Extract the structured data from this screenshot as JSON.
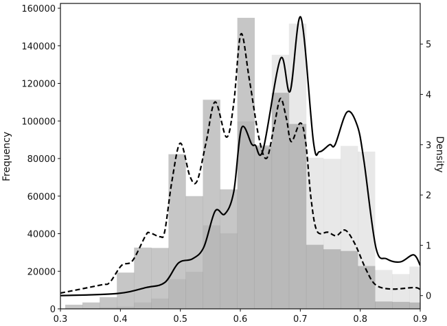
{
  "chart_data": {
    "type": "bar",
    "subtype": "overlaid histogram with density curves (twin y-axes)",
    "title": "",
    "xlabel": "",
    "ylabel": "Frequency",
    "ylabel_right": "Density",
    "xlim": [
      0.3,
      0.9
    ],
    "ylim": [
      0,
      160000
    ],
    "ylim_right": [
      -0.1,
      5.8
    ],
    "x_ticks": [
      "0.3",
      "0.4",
      "0.5",
      "0.6",
      "0.7",
      "0.8",
      "0.9"
    ],
    "y_ticks": [
      "0",
      "20000",
      "40000",
      "60000",
      "80000",
      "100000",
      "120000",
      "140000",
      "160000"
    ],
    "y_ticks_right": [
      "0",
      "1",
      "2",
      "3",
      "4",
      "5"
    ],
    "grid": false,
    "legend": "none",
    "bin_start": 0.308,
    "bin_width": 0.0287,
    "histograms": [
      {
        "color": "#808080",
        "opacity": 0.45,
        "values": [
          2200,
          3400,
          6200,
          19300,
          32600,
          32400,
          82300,
          60000,
          111300,
          63600,
          154900,
          87000,
          115000,
          98400,
          34100,
          31700,
          30800,
          22800,
          3900,
          3700,
          3400
        ]
      },
      {
        "color": "#808080",
        "opacity": 0.18,
        "values": [
          0,
          400,
          800,
          1200,
          3400,
          5500,
          15800,
          19700,
          44400,
          40200,
          99800,
          86000,
          135200,
          151800,
          80400,
          79800,
          86700,
          83700,
          20700,
          18500,
          22500
        ]
      }
    ],
    "density_curves": [
      {
        "style": "dashed",
        "color": "#000000",
        "x": [
          0.3,
          0.367,
          0.382,
          0.402,
          0.42,
          0.442,
          0.449,
          0.466,
          0.474,
          0.486,
          0.5,
          0.516,
          0.528,
          0.543,
          0.558,
          0.577,
          0.589,
          0.601,
          0.615,
          0.631,
          0.644,
          0.657,
          0.667,
          0.677,
          0.685,
          0.7,
          0.709,
          0.718,
          0.728,
          0.746,
          0.76,
          0.775,
          0.791,
          0.81,
          0.826,
          0.852,
          0.89,
          0.9
        ],
        "y": [
          0.05,
          0.21,
          0.26,
          0.6,
          0.69,
          1.19,
          1.25,
          1.17,
          1.28,
          2.28,
          3.03,
          2.37,
          2.28,
          3.05,
          3.85,
          3.15,
          3.82,
          5.2,
          4.3,
          3.14,
          2.73,
          3.41,
          3.92,
          3.51,
          3.06,
          3.43,
          3.05,
          1.92,
          1.28,
          1.26,
          1.19,
          1.3,
          1.03,
          0.51,
          0.21,
          0.13,
          0.16,
          0.12
        ]
      },
      {
        "style": "solid",
        "color": "#000000",
        "x": [
          0.3,
          0.394,
          0.443,
          0.474,
          0.497,
          0.52,
          0.539,
          0.558,
          0.574,
          0.589,
          0.602,
          0.619,
          0.625,
          0.638,
          0.667,
          0.683,
          0.701,
          0.722,
          0.732,
          0.749,
          0.758,
          0.778,
          0.795,
          0.806,
          0.826,
          0.844,
          0.867,
          0.889,
          0.9
        ],
        "y": [
          0.0,
          0.04,
          0.16,
          0.26,
          0.65,
          0.73,
          0.96,
          1.68,
          1.62,
          2.06,
          3.33,
          3.01,
          2.99,
          2.9,
          4.71,
          4.06,
          5.53,
          3.05,
          2.86,
          3.0,
          3.0,
          3.65,
          3.38,
          2.69,
          0.96,
          0.73,
          0.67,
          0.81,
          0.6
        ]
      }
    ]
  }
}
